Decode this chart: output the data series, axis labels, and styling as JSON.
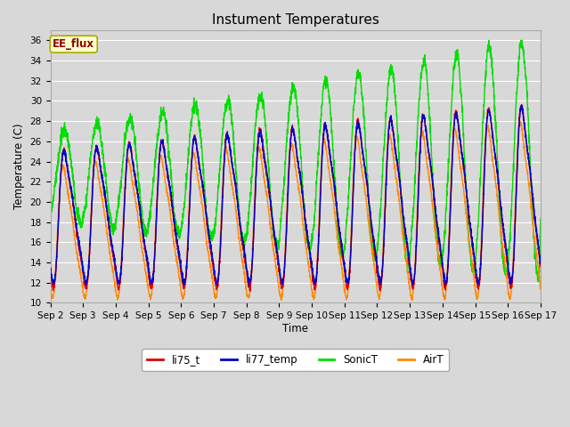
{
  "title": "Instument Temperatures",
  "xlabel": "Time",
  "ylabel": "Temperature (C)",
  "ylim": [
    10,
    37
  ],
  "yticks": [
    10,
    12,
    14,
    16,
    18,
    20,
    22,
    24,
    26,
    28,
    30,
    32,
    34,
    36
  ],
  "background_color": "#d8d8d8",
  "plot_bg_color": "#d8d8d8",
  "annotation_text": "EE_flux",
  "annotation_color": "#8b0000",
  "annotation_bg": "#ffffcc",
  "annotation_border": "#aaaa00",
  "series": {
    "li75_t": {
      "color": "#dd0000",
      "lw": 1.0
    },
    "li77_temp": {
      "color": "#0000cc",
      "lw": 1.0
    },
    "SonicT": {
      "color": "#00dd00",
      "lw": 1.0
    },
    "AirT": {
      "color": "#ff8800",
      "lw": 1.0
    }
  },
  "legend_entries": [
    "li75_t",
    "li77_temp",
    "SonicT",
    "AirT"
  ],
  "legend_colors": [
    "#dd0000",
    "#0000cc",
    "#00dd00",
    "#ff8800"
  ],
  "grid_color": "#ffffff",
  "tick_label_size": 7.5,
  "title_fontsize": 11
}
